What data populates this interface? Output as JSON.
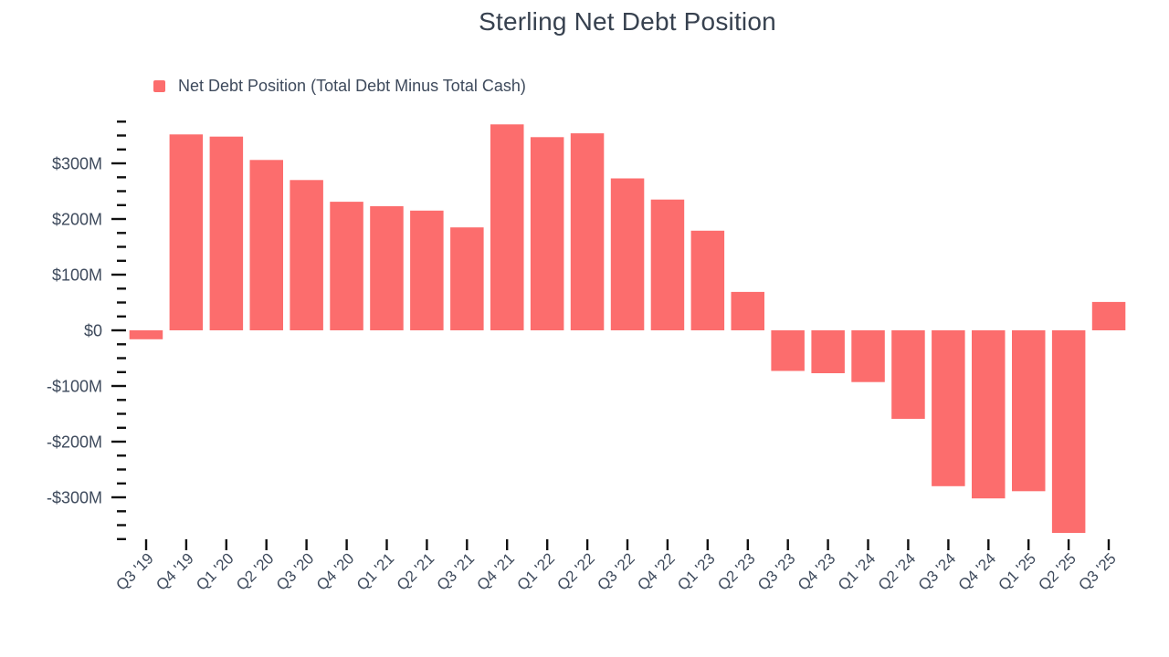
{
  "chart_data": {
    "type": "bar",
    "title": "Sterling Net Debt Position",
    "legend_position": "top-left",
    "grid": false,
    "value_unit": "$M",
    "categories": [
      "Q3 '19",
      "Q4 '19",
      "Q1 '20",
      "Q2 '20",
      "Q3 '20",
      "Q4 '20",
      "Q1 '21",
      "Q2 '21",
      "Q3 '21",
      "Q4 '21",
      "Q1 '22",
      "Q2 '22",
      "Q3 '22",
      "Q4 '22",
      "Q1 '23",
      "Q2 '23",
      "Q3 '23",
      "Q4 '23",
      "Q1 '24",
      "Q2 '24",
      "Q3 '24",
      "Q4 '24",
      "Q1 '25",
      "Q2 '25",
      "Q3 '25"
    ],
    "series": [
      {
        "name": "Net Debt Position (Total Debt Minus Total Cash)",
        "values": [
          -16,
          352,
          348,
          306,
          270,
          231,
          223,
          215,
          185,
          370,
          347,
          354,
          273,
          235,
          179,
          69,
          -73,
          -77,
          -93,
          -159,
          -280,
          -302,
          -289,
          -364,
          51
        ]
      }
    ],
    "ylim": [
      -375,
      375
    ],
    "ytick_interval_major": 100,
    "ytick_interval_minor": 25,
    "yticks_labeled": [
      {
        "value": 300,
        "label": "$300M"
      },
      {
        "value": 200,
        "label": "$200M"
      },
      {
        "value": 100,
        "label": "$100M"
      },
      {
        "value": 0,
        "label": "$0"
      },
      {
        "value": -100,
        "label": "-$100M"
      },
      {
        "value": -200,
        "label": "-$200M"
      },
      {
        "value": -300,
        "label": "-$300M"
      }
    ]
  },
  "colors": {
    "bar": "#fc6d6d",
    "title_text": "#37414f",
    "axis_label_text": "#3e4a5c",
    "tick": "#111111"
  }
}
